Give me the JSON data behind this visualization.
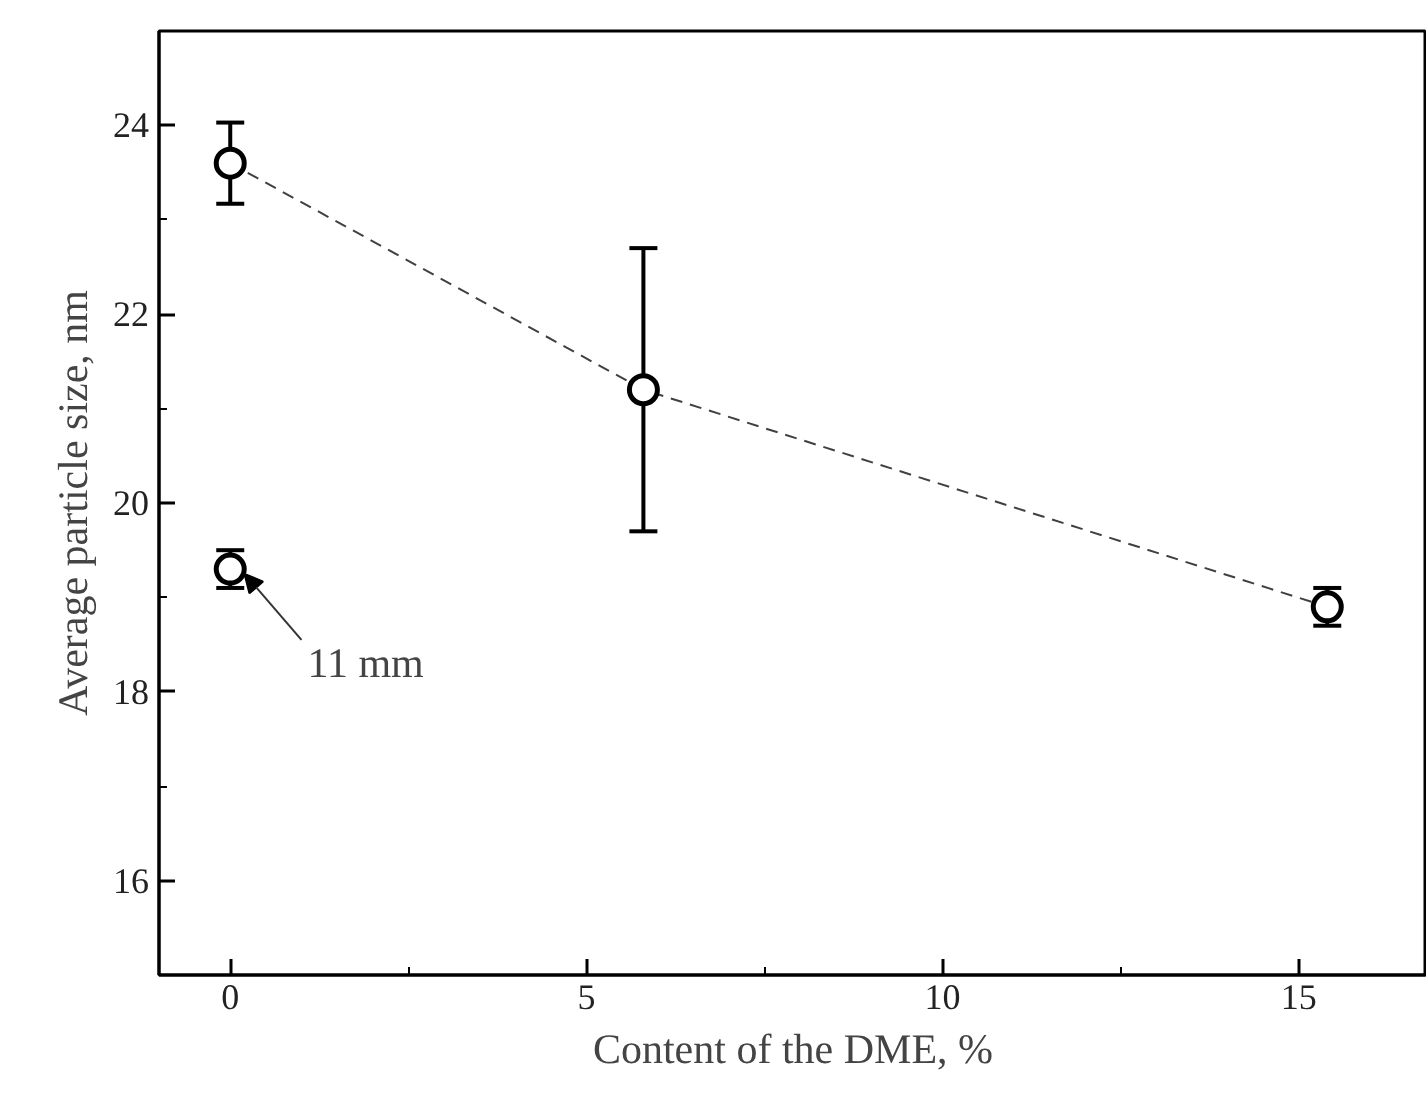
{
  "chart_data": {
    "type": "line",
    "xlabel": "Content of the DME, %",
    "ylabel": "Average particle size, nm",
    "xlim": [
      -1,
      16.8
    ],
    "ylim": [
      15,
      25
    ],
    "xticks": [
      0,
      5,
      10,
      15
    ],
    "yticks": [
      16,
      18,
      20,
      22,
      24
    ],
    "grid": false,
    "marker": "circle",
    "line_style": "dashed",
    "series": [
      {
        "color": "#000000",
        "x": [
          0,
          5.8,
          15.4
        ],
        "values": [
          23.6,
          21.2,
          18.9
        ],
        "errors": [
          0.43,
          1.5,
          0.2
        ]
      },
      {
        "type": "scatter",
        "color": "#000000",
        "x": [
          0
        ],
        "values": [
          19.3
        ],
        "errors": [
          0.2
        ]
      }
    ],
    "annotations": [
      {
        "text": "11 mm",
        "x": 0,
        "y": 19.3
      }
    ]
  }
}
